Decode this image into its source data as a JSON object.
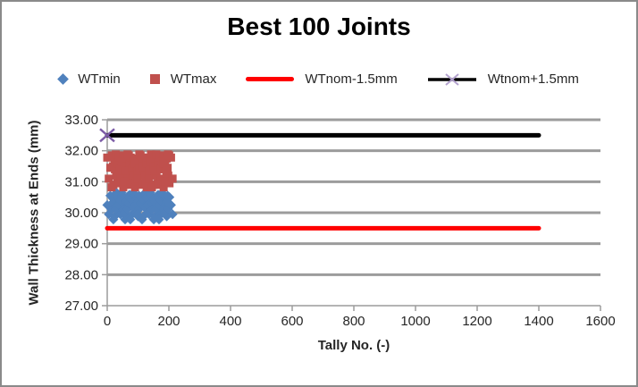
{
  "chart_data": {
    "type": "scatter",
    "title": "Best 100 Joints",
    "xlabel": "Tally No. (-)",
    "ylabel": "Wall Thickness at Ends (mm)",
    "xlim": [
      0,
      1600
    ],
    "ylim": [
      27,
      33
    ],
    "grid": true,
    "legend_position": "top",
    "xtick_values": [
      0,
      200,
      400,
      600,
      800,
      1000,
      1200,
      1400,
      1600
    ],
    "xtick_labels": [
      "0",
      "200",
      "400",
      "600",
      "800",
      "1000",
      "1200",
      "1400",
      "1600"
    ],
    "ytick_values": [
      33,
      32,
      31,
      30,
      29,
      28,
      27
    ],
    "ytick_labels": [
      "33.00",
      "32.00",
      "31.00",
      "30.00",
      "29.00",
      "28.00",
      "27.00"
    ],
    "grid_color": "#9C9C9C",
    "axis_color": "#9C9C9C",
    "x": [
      0,
      5,
      10,
      15,
      20,
      25,
      30,
      14,
      19,
      24,
      29,
      34,
      39,
      44,
      28,
      33,
      38,
      43,
      48,
      53,
      58,
      42,
      47,
      52,
      57,
      62,
      67,
      72,
      56,
      61,
      66,
      71,
      76,
      81,
      86,
      70,
      75,
      80,
      85,
      90,
      95,
      100,
      84,
      89,
      94,
      99,
      104,
      109,
      114,
      98,
      103,
      108,
      113,
      118,
      123,
      128,
      112,
      117,
      122,
      127,
      132,
      137,
      142,
      126,
      131,
      136,
      141,
      146,
      151,
      156,
      140,
      145,
      150,
      155,
      160,
      165,
      170,
      154,
      159,
      164,
      169,
      174,
      179,
      184,
      168,
      173,
      178,
      183,
      188,
      193,
      198,
      182,
      187,
      192,
      197,
      202,
      207,
      212,
      196,
      201
    ],
    "series": [
      {
        "name": "WTmin",
        "kind": "scatter",
        "marker": "diamond",
        "color": "#4F81BD",
        "y": [
          30.25,
          29.95,
          30.55,
          30.3,
          29.78,
          30.4,
          30.65,
          30.1,
          30.45,
          29.88,
          30.2,
          30.58,
          30.0,
          30.35,
          30.12,
          30.5,
          30.25,
          29.95,
          30.55,
          30.3,
          29.78,
          30.4,
          30.65,
          30.1,
          30.45,
          29.88,
          30.2,
          30.58,
          30.0,
          30.35,
          30.12,
          30.5,
          30.25,
          29.95,
          30.55,
          30.3,
          29.78,
          30.4,
          30.65,
          30.1,
          30.45,
          29.88,
          30.2,
          30.58,
          30.0,
          30.35,
          30.12,
          30.5,
          30.25,
          29.95,
          30.55,
          30.3,
          29.78,
          30.4,
          30.65,
          30.1,
          30.45,
          29.88,
          30.2,
          30.58,
          30.0,
          30.35,
          30.12,
          30.5,
          30.25,
          29.95,
          30.55,
          30.3,
          29.78,
          30.4,
          30.65,
          30.1,
          30.45,
          29.88,
          30.2,
          30.58,
          30.0,
          30.35,
          30.12,
          30.5,
          30.25,
          29.95,
          30.55,
          30.3,
          29.78,
          30.4,
          30.65,
          30.1,
          30.45,
          29.88,
          30.2,
          30.58,
          30.0,
          30.35,
          30.12,
          30.5,
          30.25,
          29.95,
          30.55,
          30.3
        ]
      },
      {
        "name": "WTmax",
        "kind": "scatter",
        "marker": "square",
        "color": "#C0504D",
        "y": [
          31.78,
          31.1,
          31.45,
          31.85,
          30.9,
          31.4,
          31.65,
          30.82,
          31.5,
          31.75,
          31.2,
          31.6,
          31.0,
          31.35,
          31.88,
          30.95,
          31.78,
          31.1,
          31.45,
          31.85,
          30.9,
          31.4,
          31.65,
          30.82,
          31.5,
          31.75,
          31.2,
          31.6,
          31.0,
          31.35,
          31.88,
          30.95,
          31.78,
          31.1,
          31.45,
          31.85,
          30.9,
          31.4,
          31.65,
          30.82,
          31.5,
          31.75,
          31.2,
          31.6,
          31.0,
          31.35,
          31.88,
          30.95,
          31.78,
          31.1,
          31.45,
          31.85,
          30.9,
          31.4,
          31.65,
          30.82,
          31.5,
          31.75,
          31.2,
          31.6,
          31.0,
          31.35,
          31.88,
          30.95,
          31.78,
          31.1,
          31.45,
          31.85,
          30.9,
          31.4,
          31.65,
          30.82,
          31.5,
          31.75,
          31.2,
          31.6,
          31.0,
          31.35,
          31.88,
          30.95,
          31.78,
          31.1,
          31.45,
          31.85,
          30.9,
          31.4,
          31.65,
          30.82,
          31.5,
          31.75,
          31.2,
          31.6,
          31.0,
          31.35,
          31.88,
          30.95,
          31.78,
          31.1,
          31.45,
          31.85
        ]
      },
      {
        "name": "WTnom-1.5mm",
        "kind": "line",
        "color": "#FF0000",
        "line_width": 5,
        "x": [
          0,
          1400
        ],
        "y": [
          29.5,
          29.5
        ]
      },
      {
        "name": "Wtnom+1.5mm",
        "kind": "line",
        "color": "#000000",
        "line_width": 5,
        "marker": "x",
        "marker_color": "#7C5CA6",
        "marker_points": [
          [
            0,
            32.5
          ]
        ],
        "x": [
          0,
          1400
        ],
        "y": [
          32.5,
          32.5
        ]
      }
    ]
  },
  "colors": {
    "wtmin_blue": "#4F81BD",
    "wtmax_red": "#C0504D",
    "nom_minus_red": "#FF0000",
    "nom_plus_black": "#000000",
    "x_marker_purple": "#7C5CA6",
    "legend_x_light_purple": "#B3A2CE",
    "gridline_gray": "#9C9C9C",
    "text_dark": "#262626",
    "frame_gray": "#8A8A8A"
  }
}
